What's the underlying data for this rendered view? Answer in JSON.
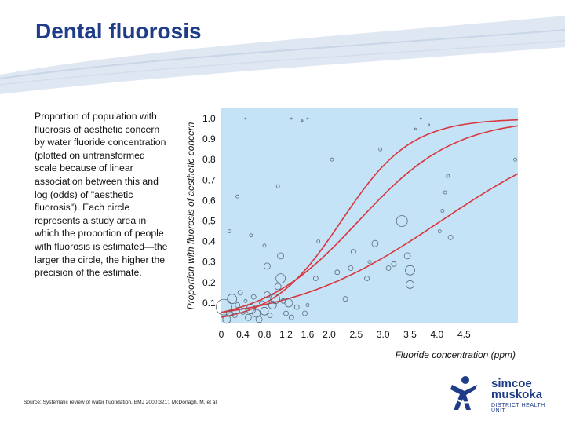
{
  "slide": {
    "title": "Dental fluorosis",
    "description": "Proportion of population with fluorosis of aesthetic concern by water fluoride concentration (plotted on untransformed scale because of linear association between this and log (odds) of \"aesthetic fluorosis\"). Each circle represents a study area in which the proportion of people with fluorosis is estimated—the larger the circle, the higher the precision of the estimate.",
    "source": "Source: Systematic review of water fluoridation. BMJ 2000;321;. McDonagh, M. et al."
  },
  "logo": {
    "line1": "simcoe",
    "line2": "muskoka",
    "line3": "DISTRICT HEALTH UNIT"
  },
  "colors": {
    "title": "#1f3c88",
    "plot_bg": "#c5e3f6",
    "curve": "#d9363e",
    "points": "#5a6a78"
  },
  "chart_data": {
    "type": "scatter",
    "xlabel": "Fluoride concentration (ppm)",
    "ylabel": "Proportion with fluorosis of aesthetic concern",
    "xlim": [
      0,
      5.5
    ],
    "ylim": [
      0,
      1.05
    ],
    "x_ticks": [
      "0",
      "0.4",
      "0.8",
      "1.2",
      "1.6",
      "2.0",
      "2.5",
      "3.0",
      "3.5",
      "4.0",
      "4.5"
    ],
    "x_tick_values": [
      0,
      0.4,
      0.8,
      1.2,
      1.6,
      2.0,
      2.5,
      3.0,
      3.5,
      4.0,
      4.5
    ],
    "y_ticks": [
      "0.1",
      "0.2",
      "0.3",
      "0.4",
      "0.5",
      "0.6",
      "0.7",
      "0.8",
      "0.9",
      "1.0"
    ],
    "y_tick_values": [
      0.1,
      0.2,
      0.3,
      0.4,
      0.5,
      0.6,
      0.7,
      0.8,
      0.9,
      1.0
    ],
    "grid": false,
    "points": [
      {
        "x": 0.05,
        "y": 0.08,
        "size": 10
      },
      {
        "x": 0.1,
        "y": 0.02,
        "size": 5
      },
      {
        "x": 0.15,
        "y": 0.05,
        "size": 4
      },
      {
        "x": 0.2,
        "y": 0.12,
        "size": 6
      },
      {
        "x": 0.25,
        "y": 0.04,
        "size": 3
      },
      {
        "x": 0.3,
        "y": 0.09,
        "size": 3
      },
      {
        "x": 0.35,
        "y": 0.15,
        "size": 3
      },
      {
        "x": 0.4,
        "y": 0.06,
        "size": 4
      },
      {
        "x": 0.45,
        "y": 0.11,
        "size": 2
      },
      {
        "x": 0.5,
        "y": 0.03,
        "size": 4
      },
      {
        "x": 0.55,
        "y": 0.07,
        "size": 6
      },
      {
        "x": 0.6,
        "y": 0.13,
        "size": 3
      },
      {
        "x": 0.65,
        "y": 0.05,
        "size": 5
      },
      {
        "x": 0.7,
        "y": 0.02,
        "size": 4
      },
      {
        "x": 0.75,
        "y": 0.1,
        "size": 3
      },
      {
        "x": 0.8,
        "y": 0.06,
        "size": 5
      },
      {
        "x": 0.85,
        "y": 0.14,
        "size": 4
      },
      {
        "x": 0.9,
        "y": 0.04,
        "size": 3
      },
      {
        "x": 0.95,
        "y": 0.09,
        "size": 5
      },
      {
        "x": 1.0,
        "y": 0.12,
        "size": 6
      },
      {
        "x": 1.05,
        "y": 0.18,
        "size": 4
      },
      {
        "x": 1.1,
        "y": 0.22,
        "size": 6
      },
      {
        "x": 1.15,
        "y": 0.11,
        "size": 3
      },
      {
        "x": 1.2,
        "y": 0.05,
        "size": 3
      },
      {
        "x": 1.25,
        "y": 0.1,
        "size": 5
      },
      {
        "x": 1.3,
        "y": 0.03,
        "size": 3
      },
      {
        "x": 1.4,
        "y": 0.08,
        "size": 3
      },
      {
        "x": 1.55,
        "y": 0.05,
        "size": 3
      },
      {
        "x": 1.6,
        "y": 0.09,
        "size": 2
      },
      {
        "x": 0.15,
        "y": 0.45,
        "size": 2
      },
      {
        "x": 0.3,
        "y": 0.62,
        "size": 2
      },
      {
        "x": 0.45,
        "y": 1.0,
        "size": 1
      },
      {
        "x": 0.55,
        "y": 0.43,
        "size": 2
      },
      {
        "x": 0.8,
        "y": 0.38,
        "size": 2
      },
      {
        "x": 0.85,
        "y": 0.28,
        "size": 4
      },
      {
        "x": 1.05,
        "y": 0.67,
        "size": 2
      },
      {
        "x": 1.1,
        "y": 0.33,
        "size": 4
      },
      {
        "x": 1.3,
        "y": 1.0,
        "size": 1
      },
      {
        "x": 1.5,
        "y": 0.99,
        "size": 1
      },
      {
        "x": 1.6,
        "y": 1.0,
        "size": 1
      },
      {
        "x": 1.75,
        "y": 0.22,
        "size": 3
      },
      {
        "x": 1.8,
        "y": 0.4,
        "size": 2
      },
      {
        "x": 2.05,
        "y": 0.8,
        "size": 2
      },
      {
        "x": 2.15,
        "y": 0.25,
        "size": 3
      },
      {
        "x": 2.3,
        "y": 0.12,
        "size": 3
      },
      {
        "x": 2.4,
        "y": 0.27,
        "size": 3
      },
      {
        "x": 2.45,
        "y": 0.35,
        "size": 3
      },
      {
        "x": 2.7,
        "y": 0.22,
        "size": 3
      },
      {
        "x": 2.75,
        "y": 0.3,
        "size": 2
      },
      {
        "x": 2.85,
        "y": 0.39,
        "size": 4
      },
      {
        "x": 2.95,
        "y": 0.85,
        "size": 2
      },
      {
        "x": 3.1,
        "y": 0.27,
        "size": 3
      },
      {
        "x": 3.2,
        "y": 0.29,
        "size": 3
      },
      {
        "x": 3.35,
        "y": 0.5,
        "size": 7
      },
      {
        "x": 3.45,
        "y": 0.33,
        "size": 4
      },
      {
        "x": 3.5,
        "y": 0.26,
        "size": 6
      },
      {
        "x": 3.5,
        "y": 0.19,
        "size": 5
      },
      {
        "x": 3.6,
        "y": 0.95,
        "size": 1
      },
      {
        "x": 3.7,
        "y": 1.0,
        "size": 1
      },
      {
        "x": 3.85,
        "y": 0.97,
        "size": 1
      },
      {
        "x": 4.05,
        "y": 0.45,
        "size": 2
      },
      {
        "x": 4.1,
        "y": 0.55,
        "size": 2
      },
      {
        "x": 4.15,
        "y": 0.64,
        "size": 2
      },
      {
        "x": 4.2,
        "y": 0.72,
        "size": 2
      },
      {
        "x": 4.25,
        "y": 0.42,
        "size": 3
      },
      {
        "x": 5.45,
        "y": 0.8,
        "size": 2
      }
    ],
    "curves": [
      {
        "a": -3.45,
        "b": 1.55
      },
      {
        "a": -2.85,
        "b": 1.12
      },
      {
        "a": -2.85,
        "b": 0.7
      }
    ]
  }
}
